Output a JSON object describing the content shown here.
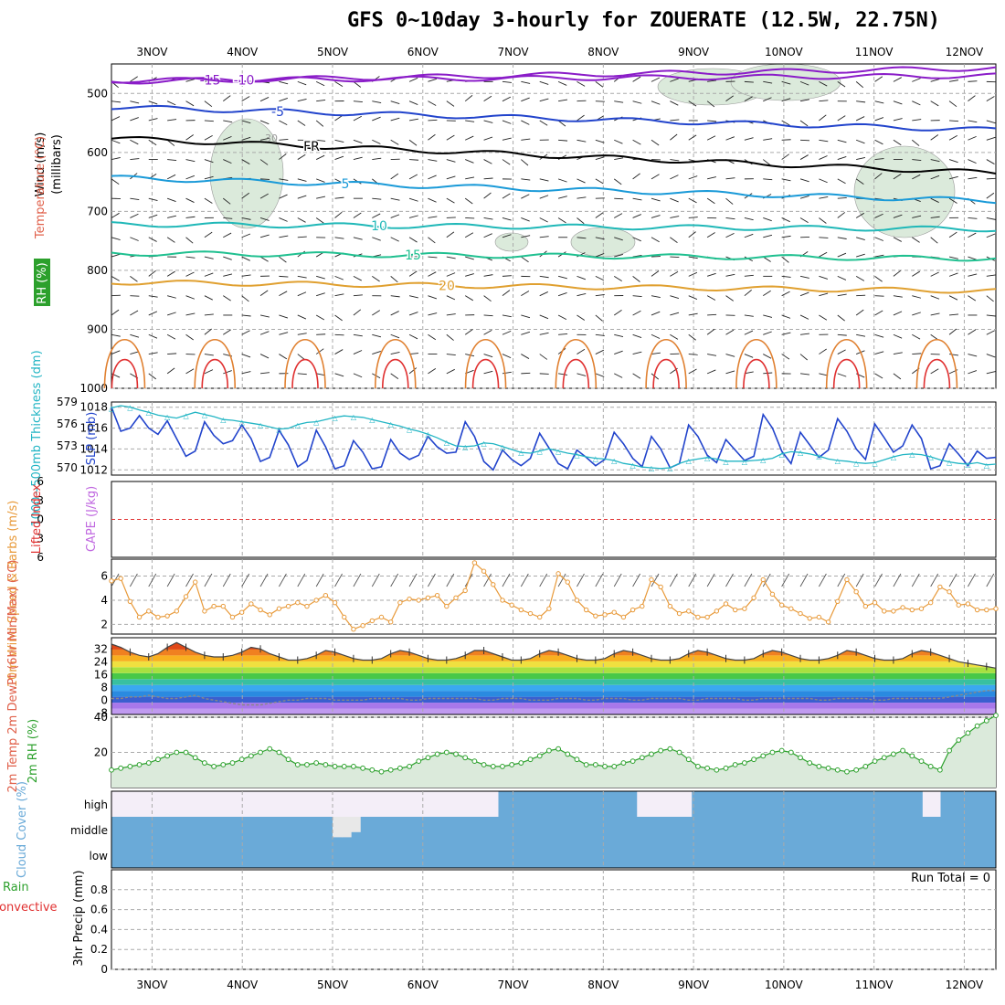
{
  "title": "GFS 0~10day 3-hourly for ZOUERATE (12.5W, 22.75N)",
  "colors": {
    "temp": "#e0604a",
    "rh": "#2ca02c",
    "thickness": "#22b5c4",
    "slp": "#2244cc",
    "wind": "#e89a3a",
    "lifted": "#e03030",
    "cape": "#c068e0",
    "cloud": "#6aaad8",
    "precip": "#2ca02c",
    "conv": "#e03030"
  },
  "chart_data": {
    "type": "meteogram",
    "time_axis": {
      "days": [
        "3NOV",
        "4NOV",
        "5NOV",
        "6NOV",
        "7NOV",
        "8NOV",
        "9NOV",
        "10NOV",
        "11NOV",
        "12NOV"
      ],
      "start_day_offset": -0.45,
      "end_day_offset": 9.35,
      "step_hours": 3
    },
    "upper_air": {
      "panel_labels": {
        "wind": "Wind (m/s)",
        "temp": "Temperature (°C)",
        "rh": "RH (%)",
        "pressure": "(millibars)"
      },
      "pressure_levels": [
        500,
        600,
        700,
        800,
        900,
        1000
      ],
      "pressure_range": [
        450,
        1000
      ],
      "isotherms": [
        {
          "label": "-15",
          "color": "#8a1cc8",
          "p_start": 480,
          "p_end": 457
        },
        {
          "label": "-10",
          "color": "#8a1cc8",
          "p_start": 478,
          "p_end": 470
        },
        {
          "label": "-5",
          "color": "#2244cc",
          "p_start": 523,
          "p_end": 562
        },
        {
          "label": "FR",
          "color": "#000000",
          "p_start": 576,
          "p_end": 635
        },
        {
          "label": "5",
          "color": "#1a9ad8",
          "p_start": 643,
          "p_end": 682
        },
        {
          "label": "10",
          "color": "#20b8b8",
          "p_start": 722,
          "p_end": 730
        },
        {
          "label": "15",
          "color": "#20c090",
          "p_start": 771,
          "p_end": 780
        },
        {
          "label": "20",
          "color": "#e0a030",
          "p_start": 820,
          "p_end": 835
        }
      ],
      "rh_contour_label": "30"
    },
    "thickness_slp": {
      "label_thickness": "1000~500mb Thickness (dm)",
      "label_slp": "SLP (mb)",
      "thickness_ticks": [
        570,
        573,
        576,
        579
      ],
      "slp_ticks": [
        1012,
        1014,
        1016,
        1018
      ],
      "thickness_range": [
        569,
        579
      ],
      "slp_range": [
        1011.5,
        1018.5
      ],
      "thickness": [
        578.2,
        578.5,
        578.3,
        577.9,
        577.6,
        577.2,
        577.0,
        576.8,
        577.2,
        577.6,
        577.3,
        577.0,
        576.6,
        576.5,
        576.3,
        576.1,
        575.9,
        575.6,
        575.3,
        575.4,
        575.9,
        576.2,
        576.3,
        576.6,
        576.9,
        577.1,
        577.0,
        576.9,
        576.6,
        576.3,
        576.0,
        575.7,
        575.3,
        575.0,
        574.6,
        574.1,
        573.5,
        573.0,
        572.9,
        573.0,
        573.4,
        573.3,
        572.9,
        572.5,
        572.1,
        572.0,
        572.3,
        572.6,
        572.3,
        572.0,
        571.8,
        571.5,
        571.3,
        571.2,
        571.0,
        570.6,
        570.4,
        570.1,
        570.0,
        569.9,
        570.0,
        570.6,
        571.0,
        571.2,
        571.4,
        571.2,
        570.9,
        570.9,
        570.9,
        571.0,
        571.1,
        571.3,
        571.9,
        572.2,
        572.1,
        571.9,
        571.6,
        571.2,
        571.0,
        570.9,
        570.7,
        570.6,
        570.7,
        571.1,
        571.5,
        571.8,
        571.9,
        571.8,
        571.5,
        571.1,
        570.8,
        570.6,
        570.5,
        570.7,
        570.4,
        570.5
      ],
      "slp": [
        1018.0,
        1015.7,
        1016.0,
        1017.2,
        1016.0,
        1015.4,
        1016.7,
        1015.0,
        1013.3,
        1013.8,
        1016.6,
        1015.3,
        1014.5,
        1014.8,
        1016.3,
        1015.0,
        1012.8,
        1013.2,
        1015.8,
        1014.4,
        1012.3,
        1012.9,
        1015.8,
        1014.2,
        1012.1,
        1012.4,
        1014.8,
        1013.7,
        1012.1,
        1012.3,
        1014.9,
        1013.6,
        1013.0,
        1013.4,
        1015.2,
        1014.2,
        1013.6,
        1013.7,
        1016.6,
        1015.2,
        1012.8,
        1012.0,
        1013.9,
        1013.0,
        1012.4,
        1013.1,
        1015.5,
        1014.1,
        1012.6,
        1012.1,
        1013.9,
        1013.2,
        1012.4,
        1013.0,
        1015.6,
        1014.5,
        1013.1,
        1012.3,
        1015.2,
        1014.0,
        1012.2,
        1012.6,
        1016.3,
        1015.2,
        1013.4,
        1012.7,
        1014.9,
        1013.9,
        1012.9,
        1013.3,
        1017.3,
        1016.0,
        1013.8,
        1012.6,
        1015.6,
        1014.4,
        1013.2,
        1013.9,
        1016.9,
        1015.7,
        1014.0,
        1013.0,
        1016.4,
        1015.1,
        1013.7,
        1014.3,
        1016.3,
        1015.0,
        1012.1,
        1012.4,
        1014.5,
        1013.5,
        1012.4,
        1013.8,
        1013.1,
        1013.2
      ]
    },
    "lifted_cape": {
      "label_lifted": "Lifted Index",
      "label_cape": "CAPE (J/kg)",
      "lifted_ticks": [
        -6,
        -3,
        0,
        3,
        6
      ],
      "lifted_range": [
        -6,
        6
      ],
      "zero_line": 0
    },
    "wind_10m": {
      "label": "10m Wind Speed & Barbs (m/s)",
      "ticks": [
        2,
        4,
        6
      ],
      "range": [
        1.2,
        7.4
      ],
      "speed": [
        5.6,
        5.8,
        3.9,
        2.6,
        3.1,
        2.6,
        2.7,
        3.1,
        4.3,
        5.5,
        3.1,
        3.5,
        3.5,
        2.6,
        3.0,
        3.7,
        3.2,
        2.8,
        3.3,
        3.5,
        3.8,
        3.5,
        4.0,
        4.4,
        3.8,
        2.6,
        1.6,
        1.9,
        2.3,
        2.6,
        2.2,
        3.8,
        4.1,
        4.0,
        4.2,
        4.4,
        3.5,
        4.2,
        4.8,
        7.1,
        6.4,
        5.3,
        4.0,
        3.6,
        3.2,
        2.9,
        2.6,
        3.3,
        6.2,
        5.5,
        4.0,
        3.2,
        2.7,
        2.8,
        3.0,
        2.6,
        3.2,
        3.5,
        5.7,
        5.1,
        3.5,
        2.9,
        3.1,
        2.6,
        2.6,
        3.1,
        3.7,
        3.2,
        3.3,
        4.2,
        5.7,
        4.5,
        3.6,
        3.3,
        2.9,
        2.5,
        2.6,
        2.2,
        3.9,
        5.7,
        4.7,
        3.5,
        3.8,
        3.1,
        3.1,
        3.4,
        3.2,
        3.3,
        3.8,
        5.1,
        4.7,
        3.6,
        3.7,
        3.2,
        3.2,
        3.3
      ]
    },
    "temp_2m": {
      "label": "2m Temp 2m DewPt (6hr Min/Max) (°C)",
      "ticks": [
        -8,
        0,
        8,
        16,
        24,
        32
      ],
      "range": [
        -9,
        39
      ],
      "color_bands": [
        "#c09af0",
        "#a878ea",
        "#3b5fcf",
        "#2a8ae0",
        "#3aa8f0",
        "#38c0a0",
        "#48c848",
        "#a8e040",
        "#f0e040",
        "#f8b020",
        "#f08020",
        "#e04818",
        "#c82810"
      ],
      "temp": [
        35,
        33,
        30,
        28,
        27,
        29,
        33,
        36,
        33,
        30,
        28,
        27,
        27,
        28,
        30,
        33,
        32,
        29,
        27,
        25,
        25,
        26,
        28,
        31,
        30,
        28,
        26,
        25,
        25,
        26,
        29,
        31,
        30,
        28,
        26,
        25,
        25,
        26,
        28,
        31,
        31,
        29,
        27,
        25,
        25,
        26,
        29,
        31,
        30,
        28,
        26,
        25,
        25,
        26,
        29,
        31,
        30,
        28,
        26,
        25,
        25,
        26,
        29,
        31,
        30,
        28,
        26,
        25,
        25,
        26,
        29,
        31,
        30,
        28,
        26,
        25,
        25,
        26,
        28,
        31,
        30,
        28,
        26,
        25,
        25,
        26,
        29,
        31,
        30,
        28,
        26,
        24,
        23,
        22,
        21,
        20
      ],
      "dewpt": [
        1,
        1,
        2,
        2,
        3,
        2,
        1,
        1,
        2,
        3,
        1,
        0,
        -1,
        -2,
        -3,
        -3,
        -3,
        -2,
        -1,
        0,
        0,
        1,
        1,
        1,
        0,
        0,
        0,
        0,
        1,
        1,
        1,
        1,
        0,
        0,
        1,
        1,
        1,
        1,
        1,
        1,
        0,
        0,
        1,
        1,
        1,
        0,
        0,
        0,
        1,
        1,
        1,
        0,
        0,
        1,
        1,
        1,
        0,
        0,
        1,
        1,
        1,
        1,
        0,
        0,
        1,
        1,
        1,
        1,
        0,
        0,
        1,
        1,
        1,
        1,
        1,
        1,
        0,
        0,
        1,
        1,
        1,
        1,
        0,
        0,
        1,
        1,
        1,
        1,
        1,
        1,
        2,
        3,
        4,
        5,
        6,
        6
      ]
    },
    "rh_2m": {
      "label": "2m RH (%)",
      "ticks": [
        20,
        40
      ],
      "range": [
        0,
        40
      ],
      "values": [
        10,
        11,
        12,
        13,
        14,
        16,
        18,
        20,
        20,
        17,
        14,
        12,
        13,
        14,
        16,
        18,
        20,
        22,
        20,
        16,
        13,
        13,
        14,
        13,
        12,
        12,
        12,
        11,
        10,
        9,
        10,
        11,
        12,
        15,
        17,
        19,
        20,
        19,
        17,
        15,
        13,
        12,
        12,
        13,
        14,
        16,
        18,
        21,
        22,
        19,
        16,
        13,
        13,
        12,
        12,
        14,
        15,
        17,
        19,
        21,
        22,
        20,
        16,
        12,
        11,
        10,
        11,
        13,
        14,
        16,
        18,
        20,
        21,
        20,
        17,
        14,
        12,
        11,
        10,
        9,
        10,
        12,
        15,
        17,
        19,
        21,
        18,
        15,
        12,
        10,
        21,
        27,
        31,
        35,
        38,
        41
      ]
    },
    "cloud_cover": {
      "label": "Cloud Cover (%)",
      "levels": [
        "high",
        "middle",
        "low"
      ],
      "high": [
        0,
        0,
        0,
        0,
        0,
        0,
        0,
        0,
        0,
        0,
        0,
        0,
        0,
        0,
        0,
        0,
        0,
        0,
        0,
        0,
        0,
        0,
        0,
        0,
        0,
        0,
        0,
        0,
        0,
        0,
        0,
        0,
        0,
        0,
        0,
        0,
        0,
        0,
        0,
        0,
        0,
        0,
        100,
        100,
        100,
        100,
        100,
        100,
        100,
        100,
        100,
        100,
        100,
        100,
        100,
        100,
        100,
        0,
        0,
        0,
        0,
        0,
        0,
        100,
        100,
        100,
        100,
        100,
        100,
        100,
        100,
        100,
        100,
        100,
        100,
        100,
        100,
        100,
        100,
        100,
        100,
        100,
        100,
        100,
        100,
        100,
        100,
        100,
        0,
        0,
        100,
        100,
        100,
        100,
        100,
        100
      ],
      "middle": [
        0,
        0,
        0,
        0,
        0,
        0,
        0,
        0,
        0,
        0,
        0,
        0,
        0,
        0,
        0,
        0,
        0,
        0,
        0,
        0,
        0,
        0,
        0,
        0,
        80,
        80,
        60,
        0,
        0,
        0,
        0,
        0,
        0,
        0,
        0,
        0,
        0,
        0,
        0,
        0,
        0,
        0,
        0,
        0,
        0,
        0,
        0,
        0,
        0,
        0,
        0,
        0,
        0,
        0,
        0,
        0,
        0,
        0,
        0,
        0,
        0,
        0,
        0,
        0,
        0,
        0,
        0,
        0,
        0,
        0,
        0,
        0,
        0,
        0,
        0,
        0,
        0,
        0,
        0,
        0,
        0,
        0,
        0,
        0,
        0,
        0,
        0,
        0,
        0,
        0,
        0,
        0,
        0,
        0,
        0,
        0
      ],
      "low": [
        0,
        0,
        0,
        0,
        0,
        0,
        0,
        0,
        0,
        0,
        0,
        0,
        0,
        0,
        0,
        0,
        0,
        0,
        0,
        0,
        0,
        0,
        0,
        0,
        0,
        0,
        0,
        0,
        0,
        0,
        0,
        0,
        0,
        0,
        0,
        0,
        0,
        0,
        0,
        0,
        0,
        0,
        0,
        0,
        0,
        0,
        0,
        0,
        0,
        0,
        0,
        0,
        0,
        0,
        0,
        0,
        0,
        0,
        0,
        0,
        0,
        0,
        0,
        0,
        0,
        0,
        0,
        0,
        0,
        0,
        0,
        0,
        0,
        0,
        0,
        0,
        0,
        0,
        0,
        0,
        0,
        0,
        0,
        0,
        0,
        0,
        0,
        0,
        0,
        0,
        0,
        0,
        0,
        0,
        0,
        0
      ]
    },
    "precip": {
      "label_total": "Total / Rain",
      "label_conv": "Convective",
      "label_axis": "3hr Precip (mm)",
      "run_total": "Run Total = 0",
      "ticks": [
        0,
        0.2,
        0.4,
        0.6,
        0.8
      ],
      "range": [
        0,
        1
      ],
      "values": []
    }
  }
}
